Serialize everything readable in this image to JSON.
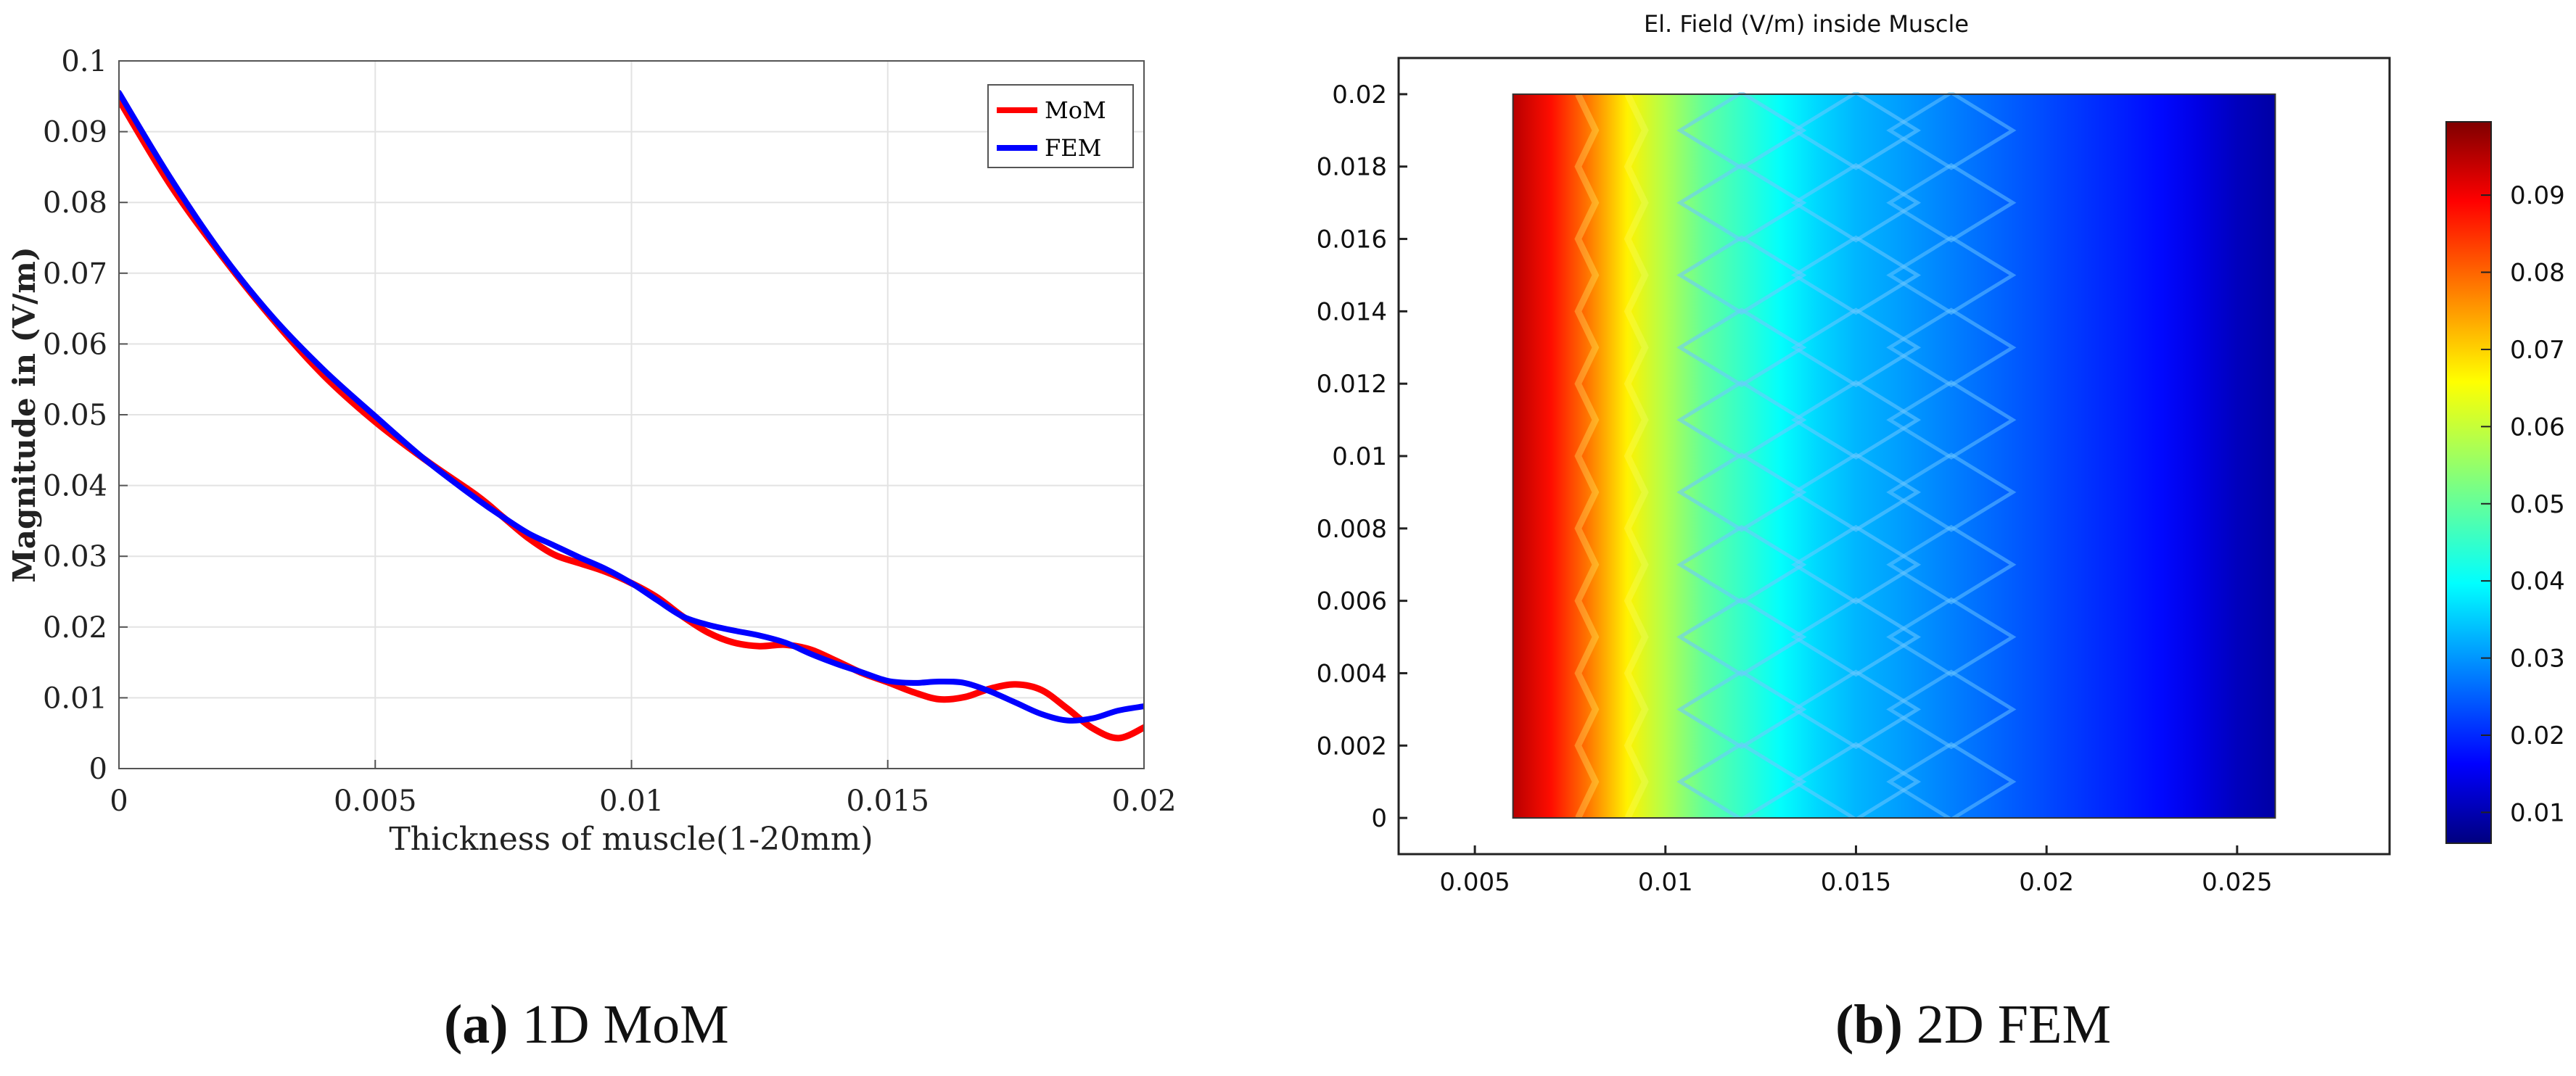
{
  "chart_data": [
    {
      "type": "line",
      "title": "",
      "xlabel": "Thickness of muscle(1-20mm)",
      "ylabel": "Magnitude in (V/m)",
      "xlim": [
        0,
        0.02
      ],
      "ylim": [
        0,
        0.1
      ],
      "grid": true,
      "legend_position": "top-right",
      "x_ticks": [
        0,
        0.005,
        0.01,
        0.015,
        0.02
      ],
      "x_tick_labels": [
        "0",
        "0.005",
        "0.01",
        "0.015",
        "0.02"
      ],
      "y_ticks": [
        0,
        0.01,
        0.02,
        0.03,
        0.04,
        0.05,
        0.06,
        0.07,
        0.08,
        0.09,
        0.1
      ],
      "y_tick_labels": [
        "0",
        "0.01",
        "0.02",
        "0.03",
        "0.04",
        "0.05",
        "0.06",
        "0.07",
        "0.08",
        "0.09",
        "0.1"
      ],
      "series": [
        {
          "name": "MoM",
          "color": "#ff0000",
          "x": [
            0,
            0.001,
            0.002,
            0.003,
            0.004,
            0.005,
            0.006,
            0.007,
            0.0075,
            0.008,
            0.0085,
            0.009,
            0.0095,
            0.01,
            0.0105,
            0.011,
            0.0115,
            0.012,
            0.0125,
            0.013,
            0.0135,
            0.014,
            0.0145,
            0.015,
            0.0155,
            0.016,
            0.0165,
            0.017,
            0.0175,
            0.018,
            0.0185,
            0.019,
            0.0195,
            0.02
          ],
          "values": [
            0.0945,
            0.0825,
            0.0725,
            0.0635,
            0.0555,
            0.049,
            0.0435,
            0.0385,
            0.0355,
            0.0325,
            0.0302,
            0.029,
            0.0278,
            0.0262,
            0.0242,
            0.0215,
            0.0192,
            0.0178,
            0.0173,
            0.0175,
            0.0168,
            0.0152,
            0.0135,
            0.0122,
            0.0108,
            0.0098,
            0.0101,
            0.0113,
            0.0119,
            0.0111,
            0.0085,
            0.0057,
            0.0043,
            0.0058
          ]
        },
        {
          "name": "FEM",
          "color": "#0000ff",
          "x": [
            0,
            0.001,
            0.002,
            0.003,
            0.004,
            0.005,
            0.006,
            0.007,
            0.0075,
            0.008,
            0.0085,
            0.009,
            0.0095,
            0.01,
            0.0105,
            0.011,
            0.0115,
            0.012,
            0.0125,
            0.013,
            0.0135,
            0.014,
            0.0145,
            0.015,
            0.0155,
            0.016,
            0.0165,
            0.017,
            0.0175,
            0.018,
            0.0185,
            0.019,
            0.0195,
            0.02
          ],
          "values": [
            0.0955,
            0.0835,
            0.0728,
            0.0638,
            0.0563,
            0.0498,
            0.0435,
            0.038,
            0.0355,
            0.0332,
            0.0315,
            0.0298,
            0.0282,
            0.0262,
            0.0238,
            0.0215,
            0.0203,
            0.0195,
            0.0188,
            0.0178,
            0.0162,
            0.0148,
            0.0136,
            0.0124,
            0.0121,
            0.0123,
            0.0121,
            0.0109,
            0.0093,
            0.0077,
            0.0068,
            0.0071,
            0.0082,
            0.0088
          ]
        }
      ],
      "caption": {
        "letter": "(a)",
        "text": " 1D MoM"
      }
    },
    {
      "type": "heatmap",
      "title": "El. Field (V/m) inside Muscle",
      "xlim": [
        0.003,
        0.029
      ],
      "ylim": [
        -0.001,
        0.021
      ],
      "data_extent_x": [
        0.006,
        0.026
      ],
      "data_extent_y": [
        0,
        0.02
      ],
      "x_ticks": [
        0.005,
        0.01,
        0.015,
        0.02,
        0.025
      ],
      "x_tick_labels": [
        "0.005",
        "0.01",
        "0.015",
        "0.02",
        "0.025"
      ],
      "y_ticks": [
        0,
        0.002,
        0.004,
        0.006,
        0.008,
        0.01,
        0.012,
        0.014,
        0.016,
        0.018,
        0.02
      ],
      "y_tick_labels": [
        "0",
        "0.002",
        "0.004",
        "0.006",
        "0.008",
        "0.01",
        "0.012",
        "0.014",
        "0.016",
        "0.018",
        "0.02"
      ],
      "colorscale": "jet",
      "color_range": [
        0.006,
        0.0995
      ],
      "colorbar_ticks": [
        0.01,
        0.02,
        0.03,
        0.04,
        0.05,
        0.06,
        0.07,
        0.08,
        0.09
      ],
      "colorbar_tick_labels": [
        "0.01",
        "0.02",
        "0.03",
        "0.04",
        "0.05",
        "0.06",
        "0.07",
        "0.08",
        "0.09"
      ],
      "field_profile_x": [
        0.006,
        0.007,
        0.008,
        0.009,
        0.01,
        0.011,
        0.012,
        0.013,
        0.014,
        0.015,
        0.016,
        0.017,
        0.018,
        0.019,
        0.02,
        0.021,
        0.022,
        0.023,
        0.024,
        0.025,
        0.026
      ],
      "field_profile_values": [
        0.095,
        0.088,
        0.078,
        0.067,
        0.058,
        0.05,
        0.045,
        0.04,
        0.036,
        0.033,
        0.031,
        0.029,
        0.027,
        0.025,
        0.023,
        0.021,
        0.019,
        0.017,
        0.014,
        0.011,
        0.009
      ],
      "caption": {
        "letter": "(b)",
        "text": " 2D FEM"
      }
    }
  ]
}
